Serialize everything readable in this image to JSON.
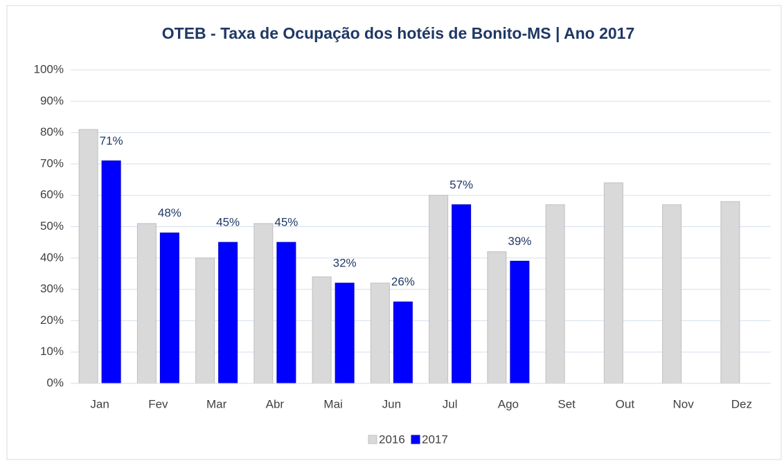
{
  "chart_data": {
    "type": "bar",
    "title": "OTEB - Taxa de Ocupação dos hotéis de Bonito-MS | Ano 2017",
    "categories": [
      "Jan",
      "Fev",
      "Mar",
      "Abr",
      "Mai",
      "Jun",
      "Jul",
      "Ago",
      "Set",
      "Out",
      "Nov",
      "Dez"
    ],
    "series": [
      {
        "name": "2016",
        "color": "#d9d9d9",
        "values": [
          81,
          51,
          40,
          51,
          34,
          32,
          60,
          42,
          57,
          64,
          57,
          58
        ]
      },
      {
        "name": "2017",
        "color": "#0000ff",
        "values": [
          71,
          48,
          45,
          45,
          32,
          26,
          57,
          39,
          null,
          null,
          null,
          null
        ],
        "value_labels": [
          "71%",
          "48%",
          "45%",
          "45%",
          "32%",
          "26%",
          "57%",
          "39%",
          null,
          null,
          null,
          null
        ]
      }
    ],
    "ylim": [
      0,
      100
    ],
    "yticks": [
      {
        "value": 0,
        "label": "0%"
      },
      {
        "value": 10,
        "label": "10%"
      },
      {
        "value": 20,
        "label": "20%"
      },
      {
        "value": 30,
        "label": "30%"
      },
      {
        "value": 40,
        "label": "40%"
      },
      {
        "value": 50,
        "label": "50%"
      },
      {
        "value": 60,
        "label": "60%"
      },
      {
        "value": 70,
        "label": "70%"
      },
      {
        "value": 80,
        "label": "80%"
      },
      {
        "value": 90,
        "label": "90%"
      },
      {
        "value": 100,
        "label": "100%"
      }
    ],
    "grid": true,
    "legend": "bottom"
  }
}
